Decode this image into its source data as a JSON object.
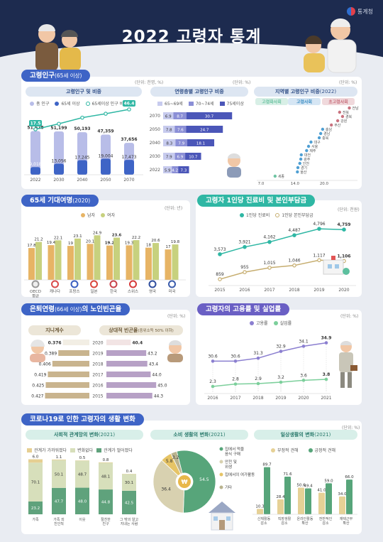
{
  "header": {
    "title": "2022 고령자 통계",
    "logo_text": "통계청"
  },
  "colors": {
    "navy": "#1d2b4f",
    "blue": "#3e64c6",
    "teal": "#2fb7a4",
    "purple": "#8b7fd0",
    "olive": "#c9c07a",
    "green": "#57a57a"
  },
  "pop": {
    "title": "고령인구",
    "title_note": "(65세 이상)",
    "unit": "(단위: 천명, %)",
    "sub1": "고령인구 및 비중",
    "legend": [
      "총 인구",
      "65세 이상",
      "65세이상 인구 비중"
    ],
    "chart_data": {
      "type": "bar",
      "categories": [
        "2022",
        "2030",
        "2040",
        "2050",
        "2070"
      ],
      "series": [
        {
          "name": "총 인구",
          "values": [
            51628,
            51199,
            50193,
            47359,
            37656
          ],
          "labels": [
            "51,628",
            "51,199",
            "50,193",
            "47,359",
            "37,656"
          ]
        },
        {
          "name": "65세 이상",
          "values": [
            9018,
            13056,
            17245,
            19004,
            17473
          ],
          "labels": [
            "9,018",
            "13,056",
            "17,245",
            "19,004",
            "17,473"
          ]
        },
        {
          "name": "65세이상 인구 비중",
          "values": [
            17.5,
            25.5,
            34.4,
            40.1,
            46.4
          ],
          "labels": [
            "17.5",
            "",
            "",
            "",
            "46.4"
          ]
        }
      ]
    },
    "sub2": "연령층별 고령인구 비중",
    "age_legend": [
      "65~69세",
      "70~74세",
      "75세이상"
    ],
    "age_chart": {
      "type": "bar",
      "categories": [
        "2070",
        "2050",
        "2040",
        "2030",
        "2022"
      ],
      "series": [
        {
          "name": "65~69세",
          "values": [
            6.9,
            7.8,
            8.3,
            7.9,
            5.9
          ]
        },
        {
          "name": "70~74세",
          "values": [
            8.7,
            7.6,
            7.9,
            6.9,
            4.2
          ]
        },
        {
          "name": "75세이상",
          "values": [
            30.7,
            24.7,
            18.1,
            10.7,
            7.3
          ]
        }
      ]
    },
    "sub3": "지역별 고령인구 비중",
    "sub3_year": "(2022)",
    "region_groups": [
      "고령화사회",
      "고령사회",
      "초고령사회"
    ],
    "region_axis": [
      "7.0",
      "14.0",
      "20.0"
    ],
    "regions": [
      {
        "name": "세종",
        "value": 9.9
      },
      {
        "name": "울산",
        "value": 14.5
      },
      {
        "name": "경기",
        "value": 14.6
      },
      {
        "name": "인천",
        "value": 15.0
      },
      {
        "name": "광주",
        "value": 15.2
      },
      {
        "name": "대전",
        "value": 15.3
      },
      {
        "name": "제주",
        "value": 16.4
      },
      {
        "name": "서울",
        "value": 16.8
      },
      {
        "name": "대구",
        "value": 17.3
      },
      {
        "name": "충북",
        "value": 19.0
      },
      {
        "name": "경남",
        "value": 19.3
      },
      {
        "name": "충남",
        "value": 19.7
      },
      {
        "name": "부산",
        "value": 21.5
      },
      {
        "name": "강원",
        "value": 22.8
      },
      {
        "name": "경북",
        "value": 23.8
      },
      {
        "name": "전북",
        "value": 23.2
      },
      {
        "name": "전남",
        "value": 25.2
      }
    ]
  },
  "life": {
    "title": "65세 기대여명",
    "title_note": "(2020)",
    "unit": "(단위: 년)",
    "legend": [
      "남자",
      "여자"
    ],
    "chart_data": {
      "type": "bar",
      "categories": [
        "OECD\n평균",
        "캐나다",
        "프랑스",
        "일본",
        "한국",
        "스위스",
        "영국",
        "미국"
      ],
      "series": [
        {
          "name": "남자",
          "values": [
            17.8,
            19.4,
            19.0,
            20.1,
            19.2,
            19.3,
            18.0,
            17.0
          ]
        },
        {
          "name": "여자",
          "values": [
            21.2,
            22.1,
            23.1,
            24.9,
            23.6,
            22.2,
            20.6,
            19.8
          ]
        }
      ]
    }
  },
  "medical": {
    "title": "고령자 1인당 진료비 및 본인부담금",
    "unit": "(단위: 천원)",
    "legend": [
      "1인당 진료비",
      "1인당 본인부담금"
    ],
    "chart_data": {
      "type": "line",
      "x": [
        "2015",
        "2016",
        "2017",
        "2018",
        "2019",
        "2020"
      ],
      "series": [
        {
          "name": "1인당 진료비",
          "values": [
            3573,
            3921,
            4162,
            4487,
            4796,
            4759
          ],
          "labels": [
            "3,573",
            "3,921",
            "4,162",
            "4,487",
            "4,796",
            "4,759"
          ]
        },
        {
          "name": "1인당 본인부담금",
          "values": [
            859,
            955,
            1015,
            1046,
            1117,
            1106
          ],
          "labels": [
            "859",
            "955",
            "1,015",
            "1,046",
            "1,117",
            "1,106"
          ]
        }
      ]
    }
  },
  "poverty": {
    "title": "은퇴연령",
    "title_note": "(66세 이상)",
    "title_tail": "의 노인빈곤율",
    "unit": "(단위: %)",
    "sub1": "지니계수",
    "sub2": "상대적 빈곤율",
    "sub2_note": "(중위소득 50% 이하)",
    "chart_data": {
      "type": "bar",
      "categories": [
        "2020",
        "2019",
        "2018",
        "2017",
        "2016",
        "2015"
      ],
      "series": [
        {
          "name": "지니계수",
          "values": [
            0.376,
            0.389,
            0.406,
            0.419,
            0.425,
            0.427
          ]
        },
        {
          "name": "상대적 빈곤율",
          "values": [
            40.4,
            43.2,
            43.4,
            44.0,
            45.0,
            44.3
          ]
        }
      ]
    }
  },
  "employment": {
    "title": "고령자의 고용률 및 실업률",
    "unit": "(단위: %)",
    "legend": [
      "고용률",
      "실업률"
    ],
    "chart_data": {
      "type": "line",
      "x": [
        "2016",
        "2017",
        "2018",
        "2019",
        "2020",
        "2021"
      ],
      "series": [
        {
          "name": "고용률",
          "values": [
            30.6,
            30.6,
            31.3,
            32.9,
            34.1,
            34.9
          ]
        },
        {
          "name": "실업률",
          "values": [
            2.3,
            2.8,
            2.9,
            3.2,
            3.6,
            3.8
          ]
        }
      ]
    }
  },
  "covid": {
    "title": "코로나19로 인한 고령자의 생활 변화",
    "unit": "(단위: %)",
    "sub1": "사회적 관계망의 변화",
    "sub1_year": "(2021)",
    "rel_legend": [
      "관계가 가까워졌다",
      "변화없다",
      "관계가 멀어졌다"
    ],
    "rel_chart": {
      "type": "bar",
      "categories": [
        "가족",
        "가족 외\n친인척",
        "이웃",
        "절친한\n친구",
        "그 밖의 알고\n지내는 사람"
      ],
      "series": [
        {
          "name": "관계가 가까워졌다",
          "values": [
            6.0,
            1.1,
            0.5,
            0.8,
            0.4
          ]
        },
        {
          "name": "변화없다",
          "values": [
            70.1,
            50.1,
            48.7,
            48.1,
            30.1
          ]
        },
        {
          "name": "관계가 멀어졌다",
          "values": [
            23.2,
            47.7,
            48.0,
            44.8,
            42.5
          ]
        }
      ]
    },
    "sub2": "소비 생활의 변화",
    "sub2_year": "(2021)",
    "cons_chart": {
      "type": "pie",
      "labels": [
        "집에서 먹을 음식 구매",
        "안전 및 위생",
        "집에서의 여가활동",
        "기타"
      ],
      "values": [
        54.5,
        36.4,
        5.8,
        3.2
      ]
    },
    "sub3": "일상생활의 변화",
    "sub3_year": "(2021)",
    "daily_legend": [
      "부정적 견해",
      "긍정적 견해"
    ],
    "daily_chart": {
      "type": "bar",
      "categories": [
        "신체활동\n감소",
        "직장생활\n감소",
        "온라인활동\n확산",
        "전반적인\n감소",
        "재택근무\n확산"
      ],
      "series": [
        {
          "name": "부정적 견해",
          "values": [
            10.3,
            28.4,
            50.6,
            41.0,
            34.0
          ]
        },
        {
          "name": "긍정적 견해",
          "values": [
            89.7,
            71.6,
            49.4,
            59.0,
            66.0
          ]
        }
      ]
    }
  }
}
